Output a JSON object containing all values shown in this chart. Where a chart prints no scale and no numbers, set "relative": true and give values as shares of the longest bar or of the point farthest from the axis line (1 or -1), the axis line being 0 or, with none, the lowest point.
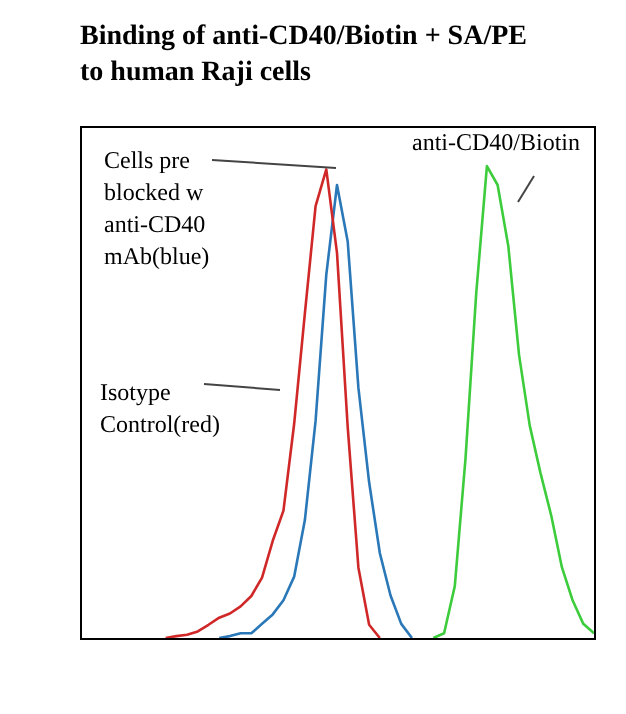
{
  "chart_data": {
    "type": "line",
    "title": "Binding of anti-CD40/Biotin + SA/PE\nto human Raji cells",
    "categories": [
      null,
      null,
      null,
      null,
      null,
      null,
      null,
      null,
      null,
      null,
      null,
      null,
      null,
      null,
      null,
      null,
      null,
      null,
      null,
      null,
      null,
      null,
      null,
      null,
      null,
      null,
      null,
      null,
      null,
      null,
      null,
      null,
      null,
      null,
      null,
      null,
      null,
      null,
      null,
      null,
      null,
      null,
      null,
      null,
      null,
      null,
      null,
      null,
      null
    ],
    "relative": true,
    "series": [
      {
        "color": "#d02828",
        "values": [
          null,
          null,
          null,
          null,
          null,
          null,
          null,
          null,
          0,
          0.004,
          0.007,
          0.014,
          0.028,
          0.043,
          0.052,
          0.067,
          0.089,
          0.128,
          0.206,
          0.27,
          0.454,
          0.688,
          0.915,
          0.993,
          0.816,
          0.447,
          0.149,
          0.028,
          0,
          null,
          null,
          null,
          null,
          null,
          null,
          null,
          null,
          null,
          null,
          null,
          null,
          null,
          null,
          null,
          null,
          null,
          null,
          null,
          null
        ]
      },
      {
        "color": "#2a78b8",
        "values": [
          null,
          null,
          null,
          null,
          null,
          null,
          null,
          null,
          null,
          null,
          null,
          null,
          null,
          0,
          0.004,
          0.01,
          0.01,
          0.03,
          0.05,
          0.08,
          0.13,
          0.25,
          0.46,
          0.77,
          0.96,
          0.84,
          0.53,
          0.33,
          0.18,
          0.09,
          0.03,
          0,
          null,
          null,
          null,
          null,
          null,
          null,
          null,
          null,
          null,
          null,
          null,
          null,
          null,
          null,
          null,
          null,
          null
        ]
      },
      {
        "color": "#3ccc3c",
        "values": [
          null,
          null,
          null,
          null,
          null,
          null,
          null,
          null,
          null,
          null,
          null,
          null,
          null,
          null,
          null,
          null,
          null,
          null,
          null,
          null,
          null,
          null,
          null,
          null,
          null,
          null,
          null,
          null,
          null,
          null,
          null,
          null,
          null,
          0,
          0.01,
          0.11,
          0.38,
          0.73,
          1,
          0.96,
          0.83,
          0.6,
          0.45,
          0.35,
          0.26,
          0.15,
          0.08,
          0.03,
          0.01
        ]
      }
    ],
    "annotations": [
      "Cells pre\nblocked w\nanti-CD40\nmAb(blue)",
      "Isotype\nControl(red)",
      "anti-CD40/Biotin"
    ],
    "legend": false
  }
}
